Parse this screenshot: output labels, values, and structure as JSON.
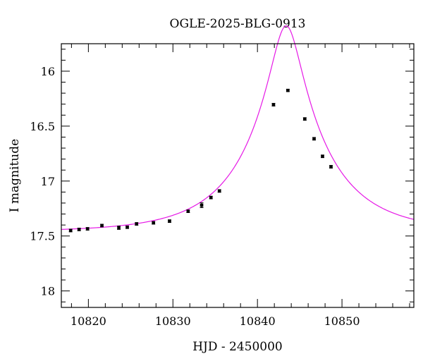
{
  "chart_data": {
    "type": "scatter",
    "title": "OGLE-2025-BLG-0913",
    "xlabel": "HJD - 2450000",
    "ylabel": "I magnitude",
    "xlim": [
      10816.8,
      10858.5
    ],
    "ylim": [
      18.15,
      15.75
    ],
    "y_inverted": true,
    "x_ticks": [
      10820,
      10830,
      10840,
      10850
    ],
    "x_tick_labels": [
      "10820",
      "10830",
      "10840",
      "10850"
    ],
    "y_ticks": [
      16,
      16.5,
      17,
      17.5,
      18
    ],
    "y_tick_labels": [
      "16",
      "16.5",
      "17",
      "17.5",
      "18"
    ],
    "grid": false,
    "series": [
      {
        "type": "scatter",
        "color": "#000000",
        "x": [
          10817.9,
          10818.9,
          10819.9,
          10821.6,
          10823.6,
          10824.6,
          10825.7,
          10827.7,
          10829.6,
          10831.8,
          10833.4,
          10834.5,
          10835.5,
          10841.9,
          10843.6,
          10845.6,
          10846.7,
          10847.7,
          10848.7
        ],
        "y": [
          17.45,
          17.44,
          17.435,
          17.405,
          17.425,
          17.42,
          17.39,
          17.38,
          17.365,
          17.275,
          17.22,
          17.15,
          17.09,
          16.305,
          16.175,
          16.435,
          16.615,
          16.775,
          16.87
        ],
        "err": [
          0.012,
          0.012,
          0.012,
          0.012,
          0.015,
          0.012,
          0.012,
          0.012,
          0.012,
          0.012,
          0.022,
          0.012,
          0.012,
          0.012,
          0.01,
          0.012,
          0.012,
          0.012,
          0.012
        ]
      },
      {
        "type": "line",
        "color": "#e619e6",
        "model": {
          "t0": 10843.4,
          "tE": 9.4,
          "u0": 0.18,
          "I_base": 17.462
        }
      }
    ]
  }
}
